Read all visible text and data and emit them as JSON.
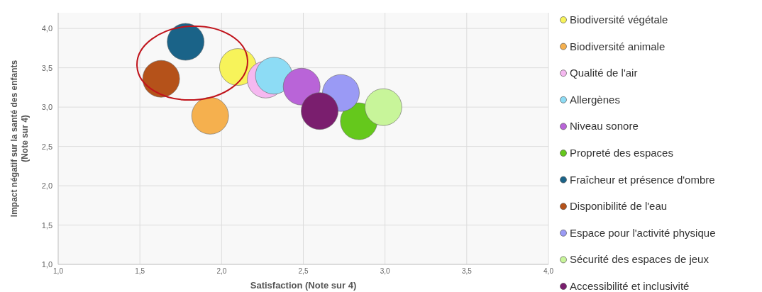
{
  "chart_data": {
    "type": "bubble",
    "xlabel": "Satisfaction (Note sur 4)",
    "ylabel": "Impact négatif sur la santé des enfants\n(Note sur 4)",
    "xlim": [
      1,
      4
    ],
    "ylim": [
      1,
      4.2
    ],
    "xticks": [
      {
        "value": 1,
        "label": "1,0"
      },
      {
        "value": 1.5,
        "label": "1,5"
      },
      {
        "value": 2,
        "label": "2,0"
      },
      {
        "value": 2.5,
        "label": "2,5"
      },
      {
        "value": 3,
        "label": "3,0"
      },
      {
        "value": 3.5,
        "label": "3,5"
      },
      {
        "value": 4,
        "label": "4,0"
      }
    ],
    "yticks": [
      {
        "value": 1,
        "label": "1,0"
      },
      {
        "value": 1.5,
        "label": "1,5"
      },
      {
        "value": 2,
        "label": "2,0"
      },
      {
        "value": 2.5,
        "label": "2,5"
      },
      {
        "value": 3,
        "label": "3,0"
      },
      {
        "value": 3.5,
        "label": "3,5"
      },
      {
        "value": 4,
        "label": "4,0"
      }
    ],
    "grid": true,
    "legend": "right",
    "marker": "circle",
    "series": [
      {
        "name": "Biodiversité végétale",
        "color": "#f7f35a",
        "x": [
          2.1
        ],
        "values": [
          3.51
        ],
        "sizes": [
          1
        ]
      },
      {
        "name": "Biodiversité animale",
        "color": "#f5b04e",
        "x": [
          1.93
        ],
        "values": [
          2.89
        ],
        "sizes": [
          1
        ]
      },
      {
        "name": "Qualité de l'air",
        "color": "#f5b8f0",
        "x": [
          2.27
        ],
        "values": [
          3.35
        ],
        "sizes": [
          1
        ]
      },
      {
        "name": "Allergènes",
        "color": "#8ddcf5",
        "x": [
          2.32
        ],
        "values": [
          3.4
        ],
        "sizes": [
          1
        ]
      },
      {
        "name": "Niveau sonore",
        "color": "#b964d8",
        "x": [
          2.49
        ],
        "values": [
          3.26
        ],
        "sizes": [
          1
        ]
      },
      {
        "name": "Propreté des espaces",
        "color": "#65c81c",
        "x": [
          2.84
        ],
        "values": [
          2.82
        ],
        "sizes": [
          1
        ]
      },
      {
        "name": "Fraîcheur et présence d'ombre",
        "color": "#1a6388",
        "x": [
          1.78
        ],
        "values": [
          3.83
        ],
        "sizes": [
          1
        ]
      },
      {
        "name": "Disponibilité de l'eau",
        "color": "#b5521a",
        "x": [
          1.63
        ],
        "values": [
          3.36
        ],
        "sizes": [
          1
        ]
      },
      {
        "name": "Espace pour l'activité physique",
        "color": "#9a9af5",
        "x": [
          2.73
        ],
        "values": [
          3.18
        ],
        "sizes": [
          1
        ]
      },
      {
        "name": "Sécurité des espaces de jeux",
        "color": "#c8f59a",
        "x": [
          2.99
        ],
        "values": [
          3.0
        ],
        "sizes": [
          1
        ]
      },
      {
        "name": "Accessibilité et inclusivité",
        "color": "#7a1e6e",
        "x": [
          2.6
        ],
        "values": [
          2.95
        ],
        "sizes": [
          1
        ]
      }
    ]
  }
}
